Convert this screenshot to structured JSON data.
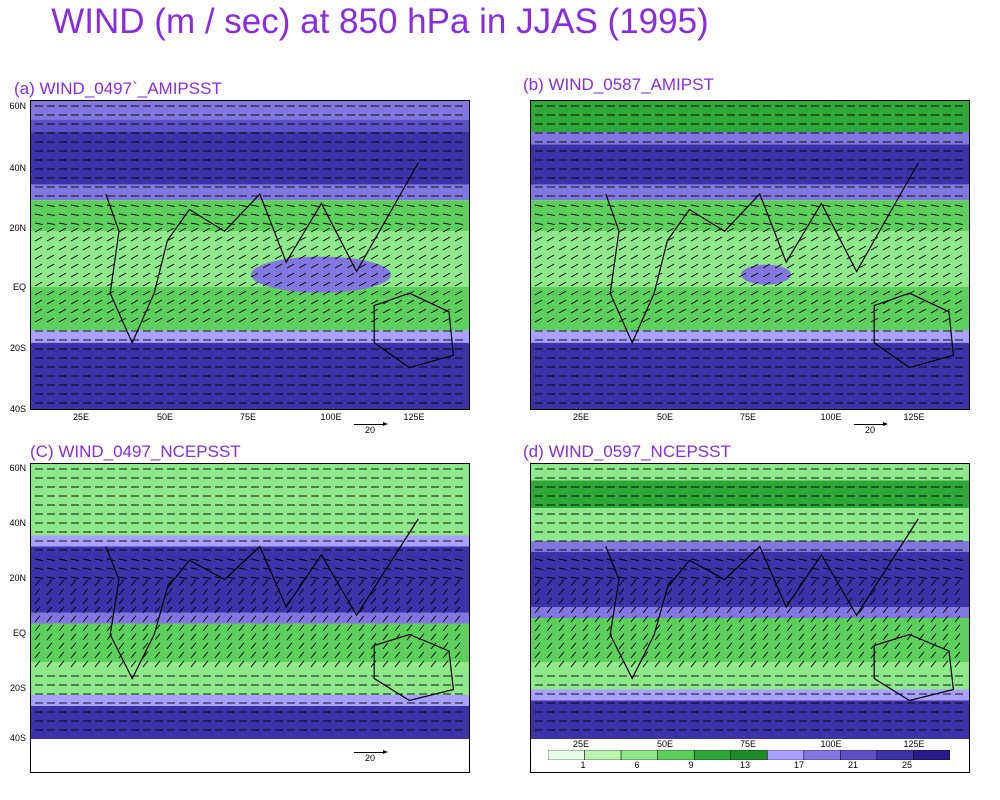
{
  "title": "WIND (m / sec) at 850 hPa in JJAS (1995)",
  "panels": [
    {
      "id": "a",
      "title": "(a)  WIND_0497`_AMIPSST",
      "scheme": "monsoon"
    },
    {
      "id": "b",
      "title": "(b)  WIND_0587_AMIPST",
      "scheme": "monsoon2"
    },
    {
      "id": "c",
      "title": "(C)  WIND_0497_NCEPSST",
      "scheme": "shifted"
    },
    {
      "id": "d",
      "title": "(d)  WIND_0597_NCEPSST",
      "scheme": "shifted2"
    }
  ],
  "y_ticks": [
    "60N",
    "40N",
    "20N",
    "EQ",
    "20S",
    "40S"
  ],
  "x_ticks": [
    "25E",
    "50E",
    "75E",
    "100E",
    "125E"
  ],
  "reference_vector": "20",
  "colorbar": {
    "levels": [
      "1",
      "6",
      "9",
      "13",
      "17",
      "21",
      "25"
    ],
    "colors": [
      "#e6ffe6",
      "#b9f5b0",
      "#8fe88a",
      "#5ccf5c",
      "#2fa83a",
      "#1e8a2a",
      "#a9a0ff",
      "#8276e0",
      "#5d50c4",
      "#3e32a8",
      "#271b8c"
    ]
  },
  "colors": {
    "title": "#8a2be2"
  }
}
